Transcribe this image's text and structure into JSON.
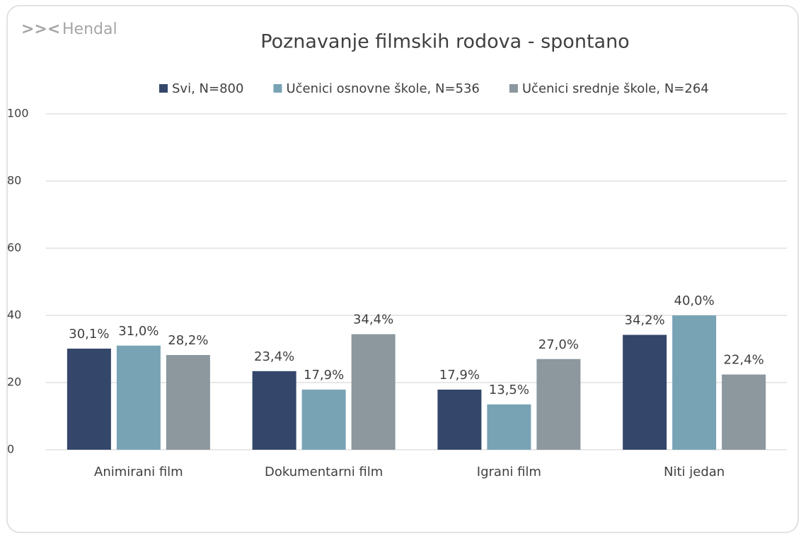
{
  "brand": "Hendal",
  "chart_data": {
    "type": "bar",
    "title": "Poznavanje filmskih rodova - spontano",
    "categories": [
      "Animirani film",
      "Dokumentarni film",
      "Igrani film",
      "Niti jedan"
    ],
    "series": [
      {
        "name": "Svi, N=800",
        "color": "#34476a",
        "values": [
          30.1,
          23.4,
          17.9,
          34.2
        ],
        "value_labels": [
          "30,1%",
          "23,4%",
          "17,9%",
          "34,2%"
        ]
      },
      {
        "name": "Učenici osnovne škole, N=536",
        "color": "#78a3b5",
        "values": [
          31.0,
          17.9,
          13.5,
          40.0
        ],
        "value_labels": [
          "31,0%",
          "17,9%",
          "13,5%",
          "40,0%"
        ]
      },
      {
        "name": "Učenici srednje škole, N=264",
        "color": "#8c979e",
        "values": [
          28.2,
          34.4,
          27.0,
          22.4
        ],
        "value_labels": [
          "28,2%",
          "34,4%",
          "27,0%",
          "22,4%"
        ]
      }
    ],
    "ylim": [
      0,
      100
    ],
    "yticks": [
      0,
      20,
      40,
      60,
      80,
      100
    ],
    "grid": true,
    "legend": "top"
  }
}
